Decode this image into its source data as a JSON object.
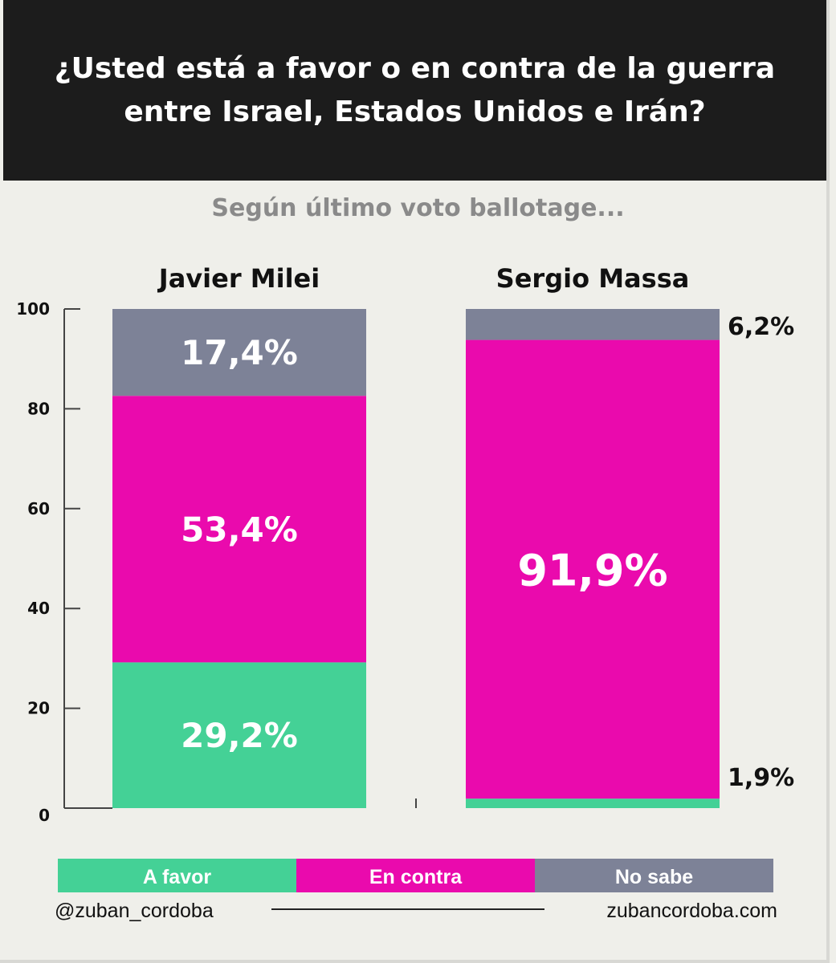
{
  "chart_data": {
    "type": "bar",
    "stacked": true,
    "title": "¿Usted está a favor o en contra de la guerra entre Israel, Estados Unidos e Irán?",
    "subtitle": "Según último voto ballotage...",
    "categories": [
      "Javier Milei",
      "Sergio Massa"
    ],
    "series": [
      {
        "name": "A favor",
        "values": [
          29.2,
          1.9
        ],
        "labels": [
          "29,2%",
          "1,9%"
        ],
        "color": "#44d196"
      },
      {
        "name": "En contra",
        "values": [
          53.4,
          91.9
        ],
        "labels": [
          "53,4%",
          "91,9%"
        ],
        "color": "#ea0aad"
      },
      {
        "name": "No sabe",
        "values": [
          17.4,
          6.2
        ],
        "labels": [
          "17,4%",
          "6,2%"
        ],
        "color": "#7d8297"
      }
    ],
    "ylim": [
      0,
      100
    ],
    "yticks": [
      0,
      20,
      40,
      60,
      80,
      100
    ],
    "grid": false,
    "legend_position": "bottom"
  },
  "footer": {
    "handle": "@zuban_cordoba",
    "website": "zubancordoba.com"
  }
}
